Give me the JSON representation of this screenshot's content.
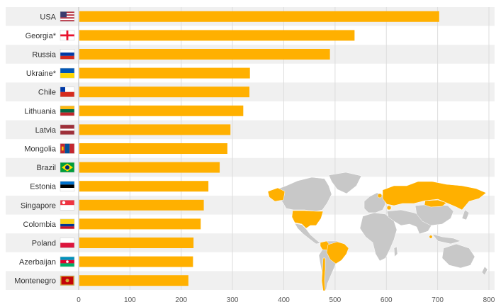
{
  "chart_data": {
    "type": "bar",
    "orientation": "horizontal",
    "categories": [
      "USA",
      "Georgia*",
      "Russia",
      "Ukraine*",
      "Chile",
      "Lithuania",
      "Latvia",
      "Mongolia",
      "Brazil",
      "Estonia",
      "Singapore",
      "Colombia",
      "Poland",
      "Azerbaijan",
      "Montenegro"
    ],
    "values": [
      703,
      538,
      490,
      334,
      333,
      321,
      296,
      290,
      275,
      253,
      244,
      238,
      224,
      223,
      214
    ],
    "xlim": [
      0,
      800
    ],
    "x_ticks": [
      0,
      100,
      200,
      300,
      400,
      500,
      600,
      700,
      800
    ],
    "grid": true,
    "bar_color": "#FFB000",
    "band_color": "#f0f0f0",
    "map_highlight_color": "#FFB000",
    "map_base_color": "#c8c8c8",
    "flag_icons": [
      "us-flag-icon",
      "georgia-flag-icon",
      "russia-flag-icon",
      "ukraine-flag-icon",
      "chile-flag-icon",
      "lithuania-flag-icon",
      "latvia-flag-icon",
      "mongolia-flag-icon",
      "brazil-flag-icon",
      "estonia-flag-icon",
      "singapore-flag-icon",
      "colombia-flag-icon",
      "poland-flag-icon",
      "azerbaijan-flag-icon",
      "montenegro-flag-icon"
    ]
  }
}
